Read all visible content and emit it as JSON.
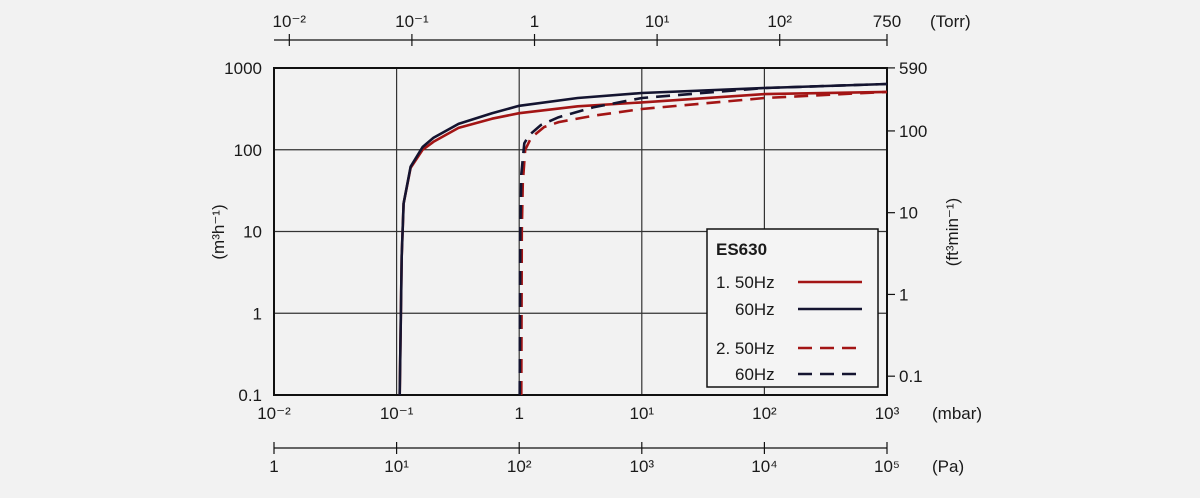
{
  "chart_data": {
    "type": "line",
    "x_scale": "log",
    "y_scale": "log",
    "xlabel": "(mbar)",
    "ylabel": "(m³h⁻¹)",
    "xlim": [
      0.01,
      1000
    ],
    "ylim": [
      0.1,
      1000
    ],
    "grid": true,
    "x_ticks": [
      {
        "v": 0.01,
        "label": "10⁻²"
      },
      {
        "v": 0.1,
        "label": "10⁻¹"
      },
      {
        "v": 1,
        "label": "1"
      },
      {
        "v": 10,
        "label": "10¹"
      },
      {
        "v": 100,
        "label": "10²"
      },
      {
        "v": 1000,
        "label": "10³"
      }
    ],
    "y_ticks": [
      {
        "v": 0.1,
        "label": "0.1"
      },
      {
        "v": 1,
        "label": "1"
      },
      {
        "v": 10,
        "label": "10"
      },
      {
        "v": 100,
        "label": "100"
      },
      {
        "v": 1000,
        "label": "1000"
      }
    ],
    "top_axis": {
      "label": "(Torr)",
      "ticks": [
        {
          "v": 0.01,
          "label": "10⁻²"
        },
        {
          "v": 0.1,
          "label": "10⁻¹"
        },
        {
          "v": 1,
          "label": "1"
        },
        {
          "v": 10,
          "label": "10¹"
        },
        {
          "v": 100,
          "label": "10²"
        },
        {
          "v": 750,
          "label": "750"
        }
      ]
    },
    "bottom_axis_2": {
      "label": "(Pa)",
      "ticks": [
        {
          "v": 1,
          "label": "1"
        },
        {
          "v": 10,
          "label": "10¹"
        },
        {
          "v": 100,
          "label": "10²"
        },
        {
          "v": 1000,
          "label": "10³"
        },
        {
          "v": 10000,
          "label": "10⁴"
        },
        {
          "v": 100000,
          "label": "10⁵"
        }
      ]
    },
    "right_axis": {
      "label": "(ft³min⁻¹)",
      "ticks": [
        {
          "v": 0.1,
          "label": "0.1"
        },
        {
          "v": 1,
          "label": "1"
        },
        {
          "v": 10,
          "label": "10"
        },
        {
          "v": 100,
          "label": "100"
        },
        {
          "v": 590,
          "label": "590"
        }
      ]
    },
    "legend": {
      "title": "ES630",
      "position": "bottom-right"
    },
    "series": [
      {
        "name": "1. 50Hz",
        "color": "#a31515",
        "dash": false,
        "x": [
          0.106,
          0.11,
          0.114,
          0.13,
          0.163,
          0.2,
          0.32,
          0.6,
          1,
          3,
          10,
          100,
          1000
        ],
        "y": [
          0.1,
          5,
          22,
          60,
          100,
          125,
          185,
          240,
          280,
          340,
          380,
          480,
          510
        ]
      },
      {
        "name": "60Hz",
        "color": "#141430",
        "dash": false,
        "x": [
          0.106,
          0.11,
          0.114,
          0.13,
          0.163,
          0.2,
          0.32,
          0.6,
          1,
          3,
          10,
          100,
          1000
        ],
        "y": [
          0.1,
          5,
          22,
          62,
          108,
          140,
          207,
          280,
          345,
          430,
          495,
          570,
          637
        ]
      },
      {
        "name": "2. 50Hz",
        "color": "#a31515",
        "dash": true,
        "x": [
          1.04,
          1.05,
          1.07,
          1.12,
          1.25,
          1.6,
          2.1,
          4,
          10,
          100,
          1000
        ],
        "y": [
          0.1,
          10,
          40,
          100,
          140,
          190,
          218,
          260,
          315,
          430,
          510
        ]
      },
      {
        "name": "60Hz",
        "color": "#141430",
        "dash": true,
        "x": [
          1.01,
          1.02,
          1.04,
          1.1,
          1.2,
          1.5,
          2.1,
          4,
          10,
          100,
          1000
        ],
        "y": [
          0.1,
          10,
          50,
          120,
          150,
          200,
          250,
          330,
          430,
          570,
          637
        ]
      }
    ]
  }
}
